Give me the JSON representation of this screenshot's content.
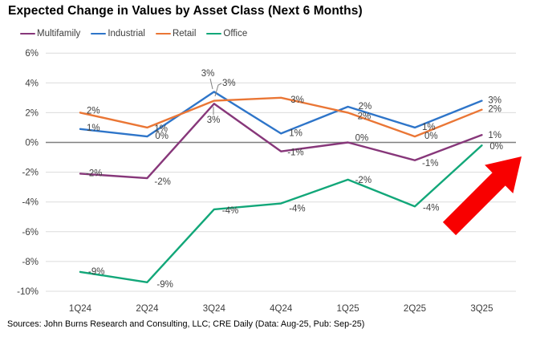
{
  "title": "Expected Change in Values by Asset Class (Next 6 Months)",
  "source": "Sources: John Burns Research and Consulting, LLC; CRE Daily (Data: Aug-25, Pub: Sep-25)",
  "chart_data": {
    "type": "line",
    "title": "Expected Change in Values by Asset Class (Next 6 Months)",
    "categories": [
      "1Q24",
      "2Q24",
      "3Q24",
      "4Q24",
      "1Q25",
      "2Q25",
      "3Q25"
    ],
    "y_ticks": [
      "6%",
      "4%",
      "2%",
      "0%",
      "-2%",
      "-4%",
      "-6%",
      "-8%",
      "-10%"
    ],
    "ylim": [
      -10,
      6
    ],
    "grid": true,
    "legend_position": "top",
    "series": [
      {
        "name": "Multifamily",
        "color": "#87377A",
        "values": [
          -2.1,
          -2.4,
          2.6,
          -0.6,
          0.0,
          -1.2,
          0.5
        ],
        "labels": [
          "-2%",
          "-2%",
          "3%",
          "-1%",
          "0%",
          "-1%",
          "1%"
        ]
      },
      {
        "name": "Industrial",
        "color": "#2E75C9",
        "values": [
          0.9,
          0.4,
          3.4,
          0.6,
          2.4,
          1.0,
          2.8
        ],
        "labels": [
          "1%",
          "0%",
          "3%",
          "1%",
          "2%",
          "1%",
          "3%"
        ]
      },
      {
        "name": "Retail",
        "color": "#EA7635",
        "values": [
          2.0,
          1.0,
          2.8,
          3.0,
          2.0,
          0.4,
          2.2
        ],
        "labels": [
          "2%",
          "1%",
          "3%",
          "3%",
          "2%",
          "0%",
          "2%"
        ]
      },
      {
        "name": "Office",
        "color": "#12A779",
        "values": [
          -8.7,
          -9.4,
          -4.5,
          -4.1,
          -2.5,
          -4.3,
          -0.2
        ],
        "labels": [
          "-9%",
          "-9%",
          "-4%",
          "-4%",
          "-2%",
          "-4%",
          "0%"
        ]
      }
    ],
    "annotation": {
      "type": "arrow-up-right",
      "color": "#F80000"
    },
    "colors": {
      "gridline": "#DCDCDC",
      "zero_line": "#7F7F7F",
      "tick_text": "#3d3d3d",
      "label_text": "#404040",
      "leader_line": "#808080"
    }
  }
}
